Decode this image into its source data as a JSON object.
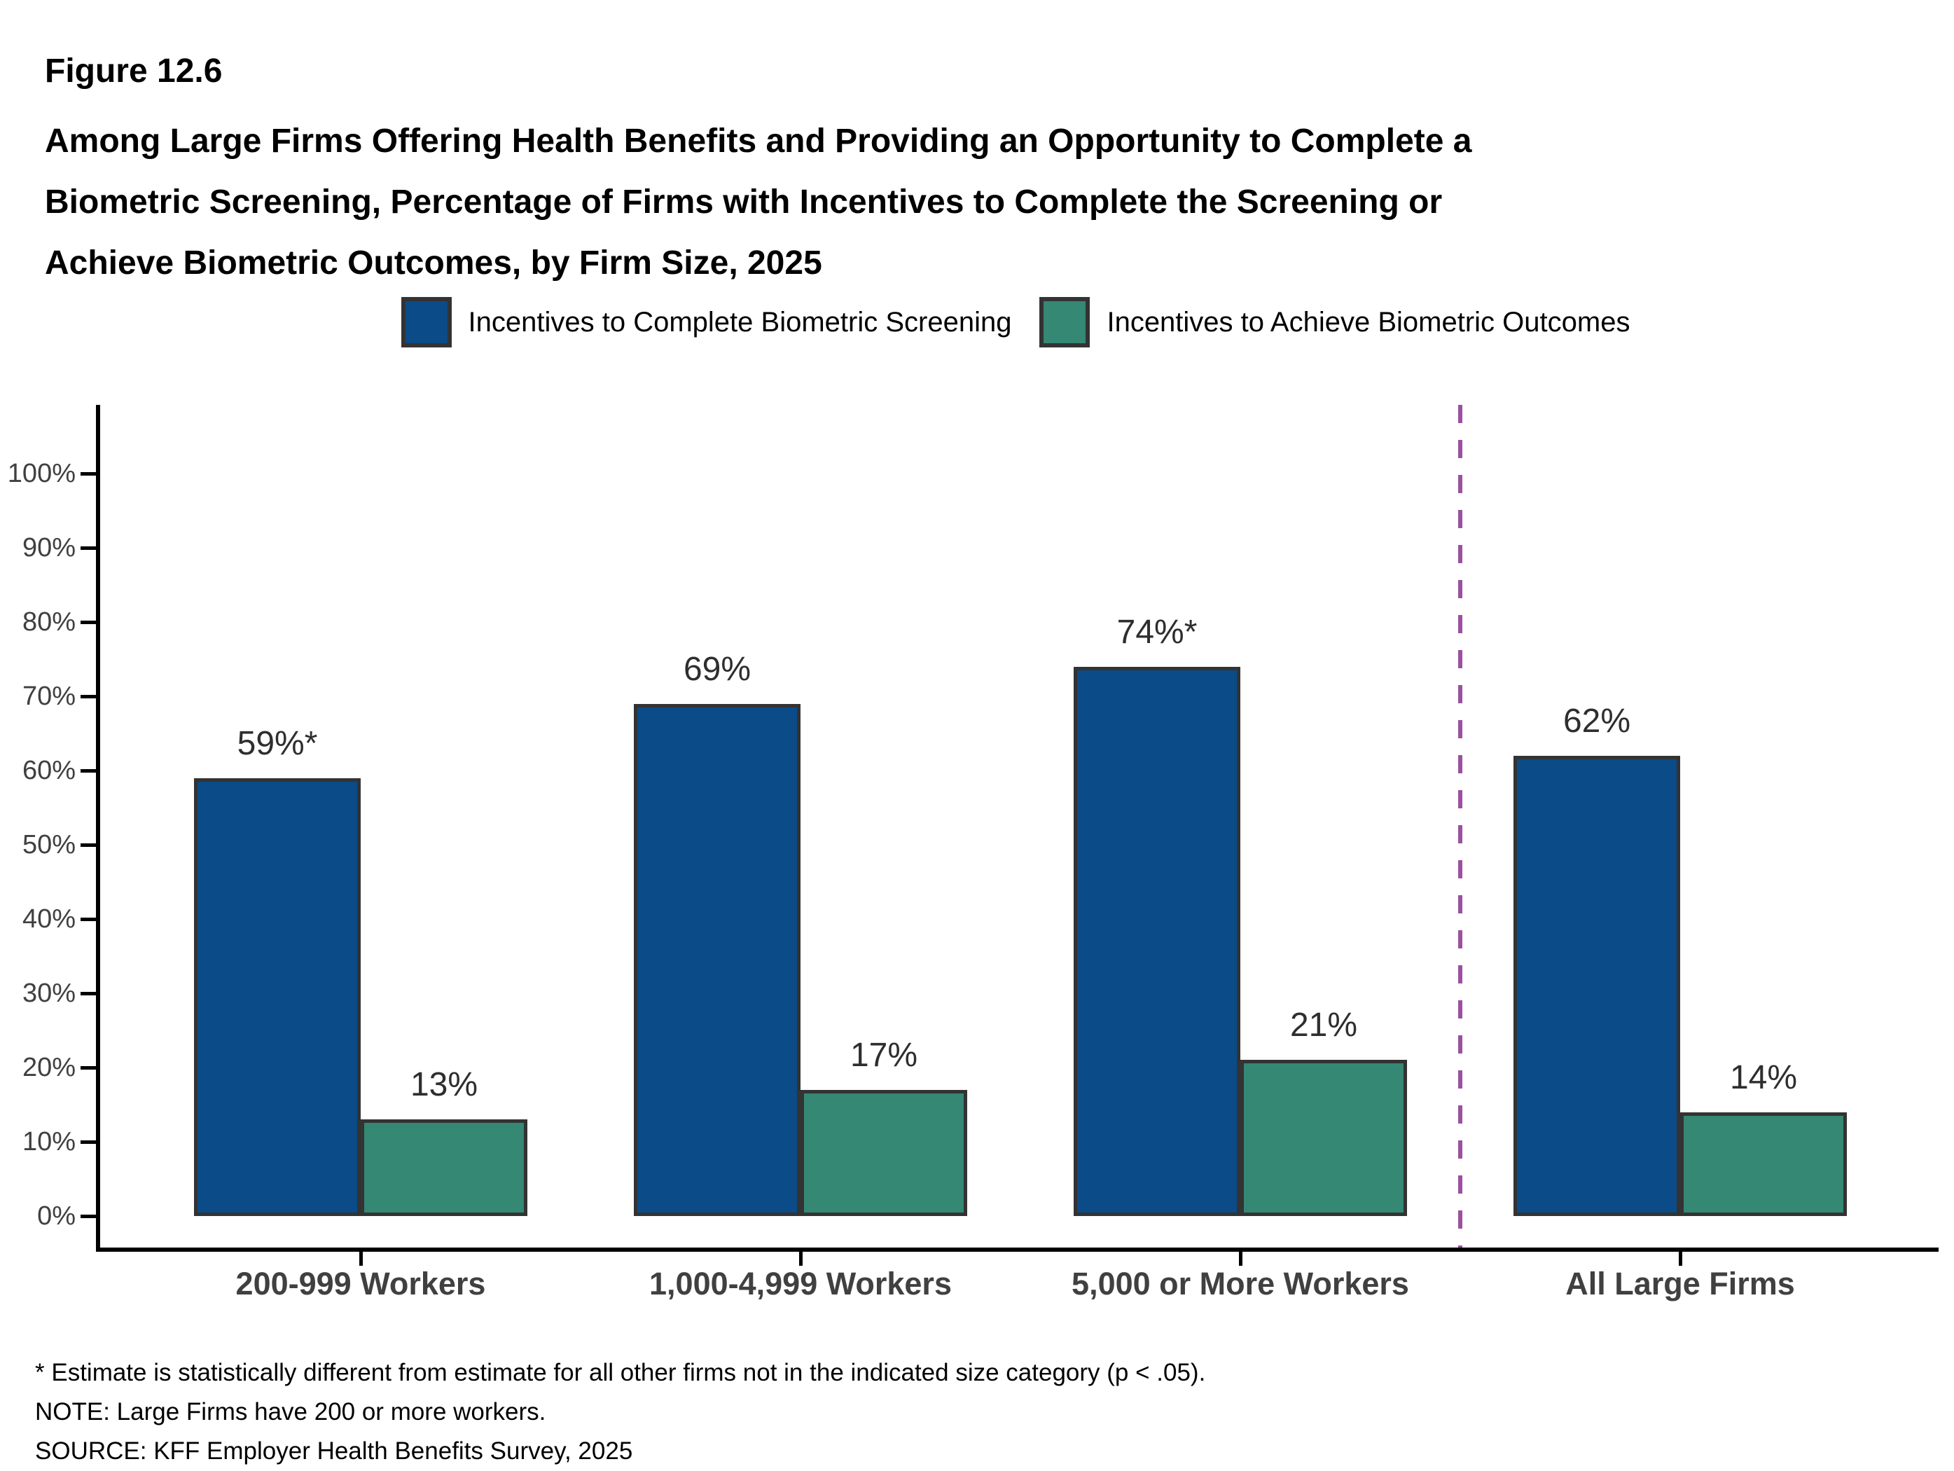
{
  "header": {
    "figure_label": "Figure 12.6",
    "title_lines": [
      "Among Large Firms Offering Health Benefits and Providing an Opportunity to Complete a",
      "Biometric Screening, Percentage of Firms with Incentives to Complete the Screening or",
      "Achieve Biometric Outcomes, by Firm Size, 2025"
    ]
  },
  "chart_data": {
    "type": "bar",
    "categories": [
      "200-999 Workers",
      "1,000-4,999 Workers",
      "5,000 or More Workers",
      "All Large Firms"
    ],
    "series": [
      {
        "name": "Incentives to Complete Biometric Screening",
        "color": "#0b4b87",
        "values": [
          59,
          69,
          74,
          62
        ],
        "value_labels": [
          "59%*",
          "69%",
          "74%*",
          "62%"
        ]
      },
      {
        "name": "Incentives to Achieve Biometric Outcomes",
        "color": "#348874",
        "values": [
          13,
          17,
          21,
          14
        ],
        "value_labels": [
          "13%",
          "17%",
          "21%",
          "14%"
        ]
      }
    ],
    "ylim": [
      0,
      100
    ],
    "ytick_labels": [
      "0%",
      "10%",
      "20%",
      "30%",
      "40%",
      "50%",
      "60%",
      "70%",
      "80%",
      "90%",
      "100%"
    ],
    "xlabel": "",
    "ylabel": "",
    "grid": false,
    "legend_position": "top",
    "separator": {
      "after_category_index": 2,
      "style": "dashed",
      "color": "#9b51a0"
    },
    "colors": {
      "bar_border": "#333333",
      "axis": "#000000",
      "y_tick_label": "#404040",
      "category_label": "#404040",
      "value_label": "#2e2e2e",
      "title": "#000000",
      "background": "#ffffff"
    }
  },
  "footnotes": [
    "* Estimate is statistically different from estimate for all other firms not in the indicated size category (p < .05).",
    "NOTE: Large Firms have 200 or more workers.",
    "SOURCE: KFF Employer Health Benefits Survey, 2025"
  ]
}
